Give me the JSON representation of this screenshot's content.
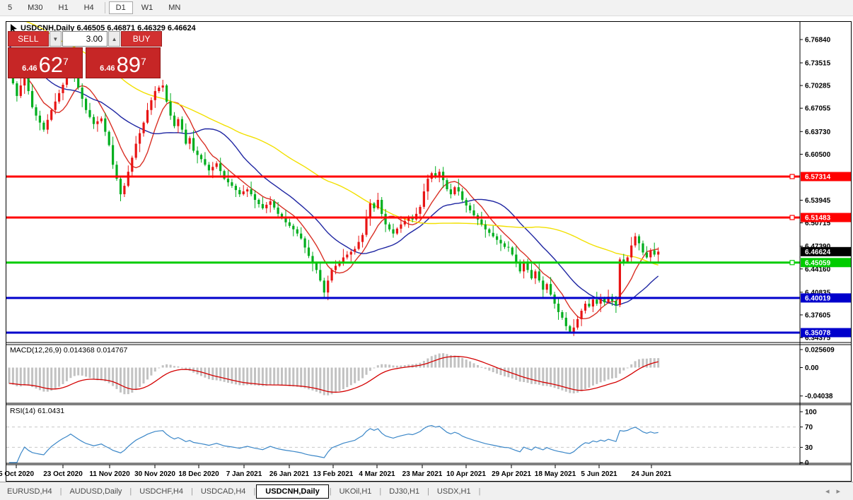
{
  "toolbar": {
    "timeframes": [
      "5",
      "M30",
      "H1",
      "H4",
      "D1",
      "W1",
      "MN"
    ],
    "active": "D1"
  },
  "window": {
    "title": "USDCNH,Daily 6.46505 6.46871 6.46329 6.46624"
  },
  "trade_panel": {
    "sell_label": "SELL",
    "buy_label": "BUY",
    "volume": "3.00",
    "sell_price": {
      "prefix": "6.46",
      "big": "62",
      "sup": "7"
    },
    "buy_price": {
      "prefix": "6.46",
      "big": "89",
      "sup": "7"
    }
  },
  "chart_data": {
    "type": "candlestick",
    "symbol": "USDCNH",
    "timeframe": "Daily",
    "ohlc_current": {
      "open": 6.46505,
      "high": 6.46871,
      "low": 6.46329,
      "close": 6.46624
    },
    "y_axis_ticks": [
      6.7684,
      6.73515,
      6.70285,
      6.67055,
      6.6373,
      6.605,
      6.53945,
      6.50715,
      6.4739,
      6.4416,
      6.40835,
      6.37605,
      6.34375
    ],
    "current_price_label": {
      "value": 6.46624,
      "text": "6.46624",
      "bg": "#000000",
      "fg": "#ffffff"
    },
    "levels": [
      {
        "value": 6.57314,
        "text": "6.57314",
        "color": "#ff0000",
        "handle": true
      },
      {
        "value": 6.51483,
        "text": "6.51483",
        "color": "#ff0000",
        "handle": true
      },
      {
        "value": 6.45059,
        "text": "6.45059",
        "color": "#00cc00",
        "handle": true
      },
      {
        "value": 6.40019,
        "text": "6.40019",
        "color": "#0000cc",
        "handle": false
      },
      {
        "value": 6.35078,
        "text": "6.35078",
        "color": "#0000cc",
        "handle": false
      }
    ],
    "candles": {
      "open0": 6.735,
      "closes": [
        6.724,
        6.706,
        6.688,
        6.703,
        6.718,
        6.695,
        6.672,
        6.66,
        6.65,
        6.64,
        6.654,
        6.668,
        6.68,
        6.692,
        6.704,
        6.715,
        6.73,
        6.716,
        6.7,
        6.684,
        6.668,
        6.658,
        6.648,
        6.652,
        6.656,
        6.637,
        6.618,
        6.59,
        6.57,
        6.548,
        6.56,
        6.58,
        6.6,
        6.62,
        6.635,
        6.65,
        6.668,
        6.682,
        6.695,
        6.7,
        6.703,
        6.68,
        6.66,
        6.645,
        6.655,
        6.64,
        6.62,
        6.628,
        6.61,
        6.604,
        6.598,
        6.59,
        6.582,
        6.587,
        6.592,
        6.581,
        6.57,
        6.565,
        6.56,
        6.554,
        6.548,
        6.552,
        6.555,
        6.548,
        6.54,
        6.534,
        6.528,
        6.533,
        6.538,
        6.529,
        6.52,
        6.514,
        6.508,
        6.503,
        6.498,
        6.492,
        6.485,
        6.472,
        6.46,
        6.45,
        6.44,
        6.425,
        6.408,
        6.425,
        6.44,
        6.446,
        6.452,
        6.458,
        6.462,
        6.466,
        6.47,
        6.48,
        6.49,
        6.515,
        6.535,
        6.528,
        6.54,
        6.52,
        6.505,
        6.498,
        6.492,
        6.499,
        6.505,
        6.51,
        6.515,
        6.512,
        6.52,
        6.53,
        6.552,
        6.57,
        6.578,
        6.572,
        6.58,
        6.568,
        6.555,
        6.548,
        6.558,
        6.552,
        6.54,
        6.532,
        6.525,
        6.518,
        6.512,
        6.505,
        6.498,
        6.493,
        6.488,
        6.483,
        6.478,
        6.473,
        6.472,
        6.462,
        6.45,
        6.438,
        6.452,
        6.44,
        6.428,
        6.438,
        6.425,
        6.412,
        6.42,
        6.405,
        6.392,
        6.38,
        6.372,
        6.36,
        6.352,
        6.358,
        6.37,
        6.382,
        6.392,
        6.388,
        6.398,
        6.392,
        6.4,
        6.394,
        6.402,
        6.396,
        6.39,
        6.455,
        6.452,
        6.458,
        6.475,
        6.488,
        6.478,
        6.465,
        6.458,
        6.468,
        6.462,
        6.4662
      ],
      "wick_up": [
        0.004,
        0.009,
        0.003,
        0.011,
        0.006,
        0.002,
        0.01,
        0.004,
        0.007,
        0.003,
        0.008,
        0.002,
        0.012,
        0.005,
        0.003
      ],
      "wick_dn": [
        0.006,
        0.003,
        0.01,
        0.004,
        0.002,
        0.008,
        0.003,
        0.012,
        0.005,
        0.002,
        0.007,
        0.011,
        0.003,
        0.006,
        0.002
      ],
      "up_color": "#e81414",
      "down_color": "#00ae1e"
    },
    "prehistory": {
      "count": 45,
      "step": 0.0035
    },
    "moving_averages": [
      {
        "period": 8,
        "color": "#d93025"
      },
      {
        "period": 21,
        "color": "#1f26a2"
      },
      {
        "period": 55,
        "color": "#f2e000"
      }
    ],
    "macd": {
      "label": "MACD(12,26,9)",
      "values": "0.014368 0.014767",
      "params": {
        "fast": 12,
        "slow": 26,
        "signal": 9
      },
      "ticks": [
        {
          "v": 0.025609,
          "text": "0.025609"
        },
        {
          "v": 0,
          "text": "0.00"
        },
        {
          "v": -0.04038,
          "text": "-0.04038"
        }
      ],
      "hist_color": "#c2c2c2",
      "signal_color": "#d40000"
    },
    "rsi": {
      "label": "RSI(14)",
      "value": "61.0431",
      "period": 14,
      "ticks": [
        {
          "v": 100,
          "text": "100"
        },
        {
          "v": 70,
          "text": "70"
        },
        {
          "v": 30,
          "text": "30"
        },
        {
          "v": 0,
          "text": "0"
        }
      ],
      "guide_levels": [
        70,
        30
      ],
      "color": "#3b87c8"
    },
    "x_axis": {
      "labels": [
        "5 Oct 2020",
        "23 Oct 2020",
        "11 Nov 2020",
        "30 Nov 2020",
        "18 Dec 2020",
        "7 Jan 2021",
        "26 Jan 2021",
        "13 Feb 2021",
        "4 Mar 2021",
        "23 Mar 2021",
        "10 Apr 2021",
        "29 Apr 2021",
        "18 May 2021",
        "5 Jun 2021",
        "24 Jun 2021"
      ],
      "x": [
        22,
        88,
        154,
        218,
        280,
        344,
        408,
        470,
        532,
        596,
        658,
        722,
        784,
        846,
        920
      ]
    }
  },
  "tabs": {
    "items": [
      "EURUSD,H4",
      "AUDUSD,Daily",
      "USDCHF,H4",
      "USDCAD,H4",
      "USDCNH,Daily",
      "UKOil,H1",
      "DJ30,H1",
      "USDX,H1"
    ],
    "active_index": 4
  }
}
